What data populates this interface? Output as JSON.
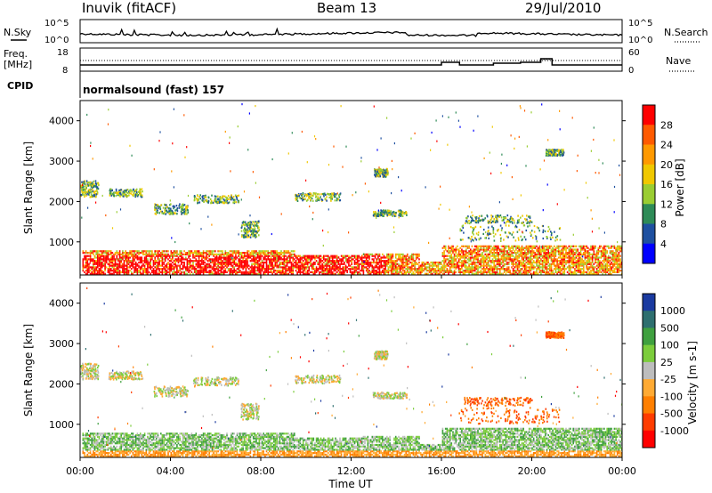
{
  "header": {
    "station": "Inuvik (fitACF)",
    "beam": "Beam 13",
    "date": "29/Jul/2010"
  },
  "noise_panel": {
    "left_label": "N.Sky",
    "right_label": "N.Search",
    "left_ticks": [
      "10^5",
      "10^0"
    ],
    "right_ticks": [
      "10^5",
      "10^0"
    ]
  },
  "freq_panel": {
    "left_label_line1": "Freq.",
    "left_label_line2": "[MHz]",
    "left_ticks": [
      "18",
      "8"
    ],
    "right_label": "Nave",
    "right_ticks": [
      "60",
      "0"
    ],
    "cpid_label": "CPID",
    "cpid_text": "normalsound (fast) 157"
  },
  "chart_data": [
    {
      "type": "heatmap",
      "name": "power",
      "ylabel": "Slant Range [km]",
      "xlabel": "",
      "xlim": [
        0,
        24
      ],
      "ylim": [
        180,
        4500
      ],
      "y_ticks": [
        1000,
        2000,
        3000,
        4000
      ],
      "colorbar": {
        "label": "Power [dB]",
        "ticks": [
          28,
          24,
          20,
          16,
          12,
          8,
          4
        ],
        "colors": [
          "#ff0000",
          "#ff5a00",
          "#ff9900",
          "#f0c800",
          "#9acd32",
          "#2e8b57",
          "#1e50a0",
          "#0000ff"
        ]
      }
    },
    {
      "type": "heatmap",
      "name": "velocity",
      "ylabel": "Slant Range [km]",
      "xlabel": "Time UT",
      "xlim": [
        0,
        24
      ],
      "ylim": [
        180,
        4500
      ],
      "y_ticks": [
        1000,
        2000,
        3000,
        4000
      ],
      "x_ticks": [
        "00:00",
        "04:00",
        "08:00",
        "12:00",
        "16:00",
        "20:00",
        "00:00"
      ],
      "colorbar": {
        "label": "Velocity [m s-1]",
        "ticks": [
          1000,
          500,
          100,
          25,
          -25,
          -100,
          -500,
          -1000
        ],
        "colors": [
          "#1a3aa0",
          "#2e6f6f",
          "#3fa03f",
          "#7ccd3c",
          "#bdbdbd",
          "#ffaa33",
          "#ff7f00",
          "#ff3c00",
          "#ff0000"
        ]
      }
    }
  ]
}
